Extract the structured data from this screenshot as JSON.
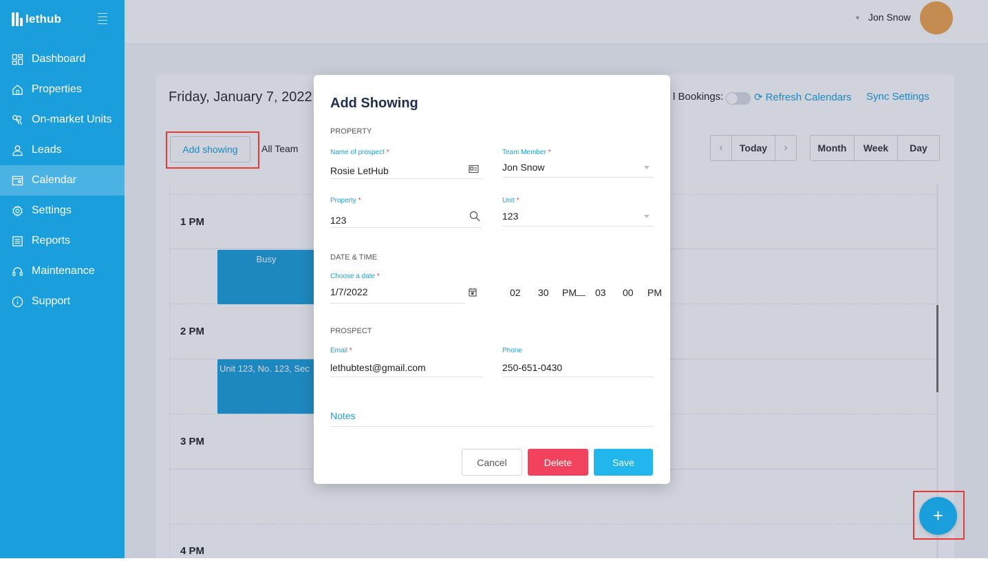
{
  "brand": {
    "name": "lethub"
  },
  "sidebar": {
    "items": [
      {
        "label": "Dashboard",
        "icon": "dashboard-icon"
      },
      {
        "label": "Properties",
        "icon": "home-icon"
      },
      {
        "label": "On-market Units",
        "icon": "keys-icon"
      },
      {
        "label": "Leads",
        "icon": "user-icon"
      },
      {
        "label": "Calendar",
        "icon": "calendar-icon",
        "active": true
      },
      {
        "label": "Settings",
        "icon": "gear-icon"
      },
      {
        "label": "Reports",
        "icon": "report-icon"
      },
      {
        "label": "Maintenance",
        "icon": "headset-icon"
      },
      {
        "label": "Support",
        "icon": "info-icon"
      }
    ]
  },
  "topbar": {
    "user_name": "Jon Snow"
  },
  "calendar": {
    "date_title": "Friday, January 7, 2022",
    "add_showing": "Add showing",
    "team_filter": "All Team",
    "bookings_label": "l Bookings:",
    "refresh": "Refresh Calendars",
    "sync": "Sync Settings",
    "today": "Today",
    "views": [
      "Month",
      "Week",
      "Day"
    ],
    "hours": [
      "1 PM",
      "2 PM",
      "3 PM",
      "4 PM"
    ],
    "events": [
      {
        "label": "Busy"
      },
      {
        "label": "Unit 123, No. 123, Sec"
      }
    ]
  },
  "modal": {
    "title": "Add Showing",
    "section_property": "PROPERTY",
    "prospect_name_label": "Name of prospect",
    "prospect_name_value": "Rosie LetHub",
    "team_member_label": "Team Member",
    "team_member_value": "Jon Snow",
    "property_label": "Property",
    "property_value": "123",
    "unit_label": "Unit",
    "unit_value": "123",
    "section_datetime": "DATE & TIME",
    "date_label": "Choose a date",
    "date_value": "1/7/2022",
    "start_hour": "02",
    "start_min": "30",
    "start_ampm": "PM",
    "end_hour": "03",
    "end_min": "00",
    "end_ampm": "PM",
    "section_prospect": "PROSPECT",
    "email_label": "Email",
    "email_value": "lethubtest@gmail.com",
    "phone_label": "Phone",
    "phone_value": "250-651-0430",
    "notes_label": "Notes",
    "cancel": "Cancel",
    "delete": "Delete",
    "save": "Save",
    "required_mark": "*"
  },
  "fab": {
    "symbol": "+"
  },
  "colors": {
    "primary": "#1a9fdc",
    "sidebar_active": "#4bb3e3",
    "delete": "#f2435e",
    "save": "#21b6ec",
    "highlight": "#e53935",
    "avatar": "#f0a54f"
  }
}
